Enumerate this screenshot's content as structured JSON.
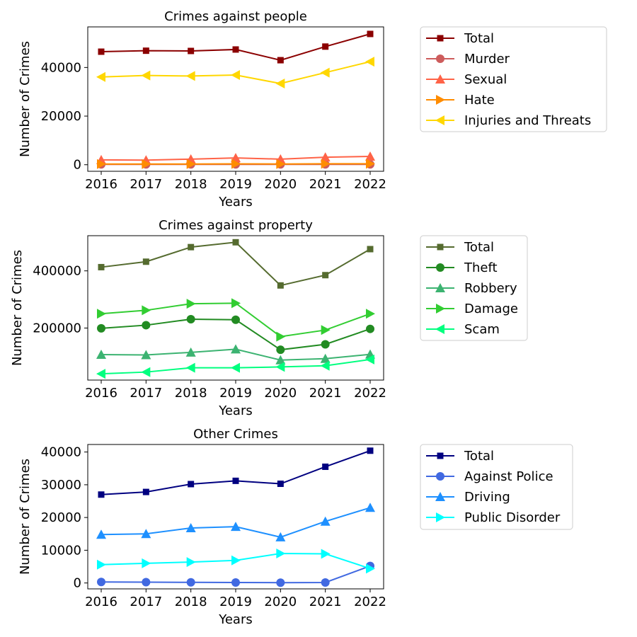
{
  "chart_data": [
    {
      "type": "line",
      "title": "Crimes against people",
      "xlabel": "Years",
      "ylabel": "Number of Crimes",
      "x": [
        2016,
        2017,
        2018,
        2019,
        2020,
        2021,
        2022
      ],
      "ylim": [
        -2700,
        56700
      ],
      "yticks": [
        0,
        20000,
        40000
      ],
      "yticklabels": [
        "0",
        "20000",
        "40000"
      ],
      "grid": false,
      "legend_position": "outside-right",
      "series": [
        {
          "name": "Total",
          "color": "#8b0000",
          "marker": "square",
          "values": [
            46500,
            46900,
            46800,
            47400,
            43000,
            48600,
            53800
          ]
        },
        {
          "name": "Murder",
          "color": "#cd5c5c",
          "marker": "circle",
          "values": [
            150,
            150,
            150,
            150,
            150,
            150,
            150
          ]
        },
        {
          "name": "Sexual",
          "color": "#ff6347",
          "marker": "triangle-up",
          "values": [
            2000,
            1900,
            2300,
            2800,
            2300,
            3100,
            3400
          ]
        },
        {
          "name": "Hate",
          "color": "#ff8c00",
          "marker": "triangle-right",
          "values": [
            300,
            300,
            300,
            350,
            300,
            400,
            400
          ]
        },
        {
          "name": "Injuries and Threats",
          "color": "#ffd700",
          "marker": "triangle-left",
          "values": [
            36100,
            36700,
            36500,
            36900,
            33400,
            37900,
            42400
          ]
        }
      ]
    },
    {
      "type": "line",
      "title": "Crimes against property",
      "xlabel": "Years",
      "ylabel": "Number of Crimes",
      "x": [
        2016,
        2017,
        2018,
        2019,
        2020,
        2021,
        2022
      ],
      "ylim": [
        18000,
        523000
      ],
      "yticks": [
        200000,
        400000
      ],
      "yticklabels": [
        "200000",
        "400000"
      ],
      "grid": false,
      "legend_position": "outside-right",
      "series": [
        {
          "name": "Total",
          "color": "#556b2f",
          "marker": "square",
          "values": [
            413000,
            432000,
            483000,
            500000,
            349000,
            385000,
            476000
          ]
        },
        {
          "name": "Theft",
          "color": "#228b22",
          "marker": "circle",
          "values": [
            199000,
            210000,
            231000,
            229000,
            124000,
            143000,
            197000
          ]
        },
        {
          "name": "Robbery",
          "color": "#3cb371",
          "marker": "triangle-up",
          "values": [
            107000,
            106000,
            115000,
            126000,
            88000,
            93000,
            108000
          ]
        },
        {
          "name": "Damage",
          "color": "#32cd32",
          "marker": "triangle-right",
          "values": [
            250000,
            262000,
            285000,
            287000,
            170000,
            193000,
            250000
          ]
        },
        {
          "name": "Scam",
          "color": "#00ff7f",
          "marker": "triangle-left",
          "values": [
            40000,
            46000,
            61000,
            61000,
            64000,
            68000,
            90000
          ]
        }
      ]
    },
    {
      "type": "line",
      "title": "Other Crimes",
      "xlabel": "Years",
      "ylabel": "Number of Crimes",
      "x": [
        2016,
        2017,
        2018,
        2019,
        2020,
        2021,
        2022
      ],
      "ylim": [
        -1800,
        42300
      ],
      "yticks": [
        0,
        10000,
        20000,
        30000,
        40000
      ],
      "yticklabels": [
        "0",
        "10000",
        "20000",
        "30000",
        "40000"
      ],
      "grid": false,
      "legend_position": "outside-right",
      "series": [
        {
          "name": "Total",
          "color": "#000080",
          "marker": "square",
          "values": [
            27000,
            27800,
            30200,
            31200,
            30300,
            35500,
            40400
          ]
        },
        {
          "name": "Against Police",
          "color": "#4169e1",
          "marker": "circle",
          "values": [
            300,
            250,
            200,
            150,
            100,
            150,
            5200
          ]
        },
        {
          "name": "Driving",
          "color": "#1e90ff",
          "marker": "triangle-up",
          "values": [
            14800,
            15000,
            16800,
            17200,
            14000,
            18800,
            23000
          ]
        },
        {
          "name": "Public Disorder",
          "color": "#00ffff",
          "marker": "triangle-right",
          "values": [
            5600,
            6000,
            6400,
            6900,
            9000,
            8900,
            4400
          ]
        }
      ]
    }
  ]
}
